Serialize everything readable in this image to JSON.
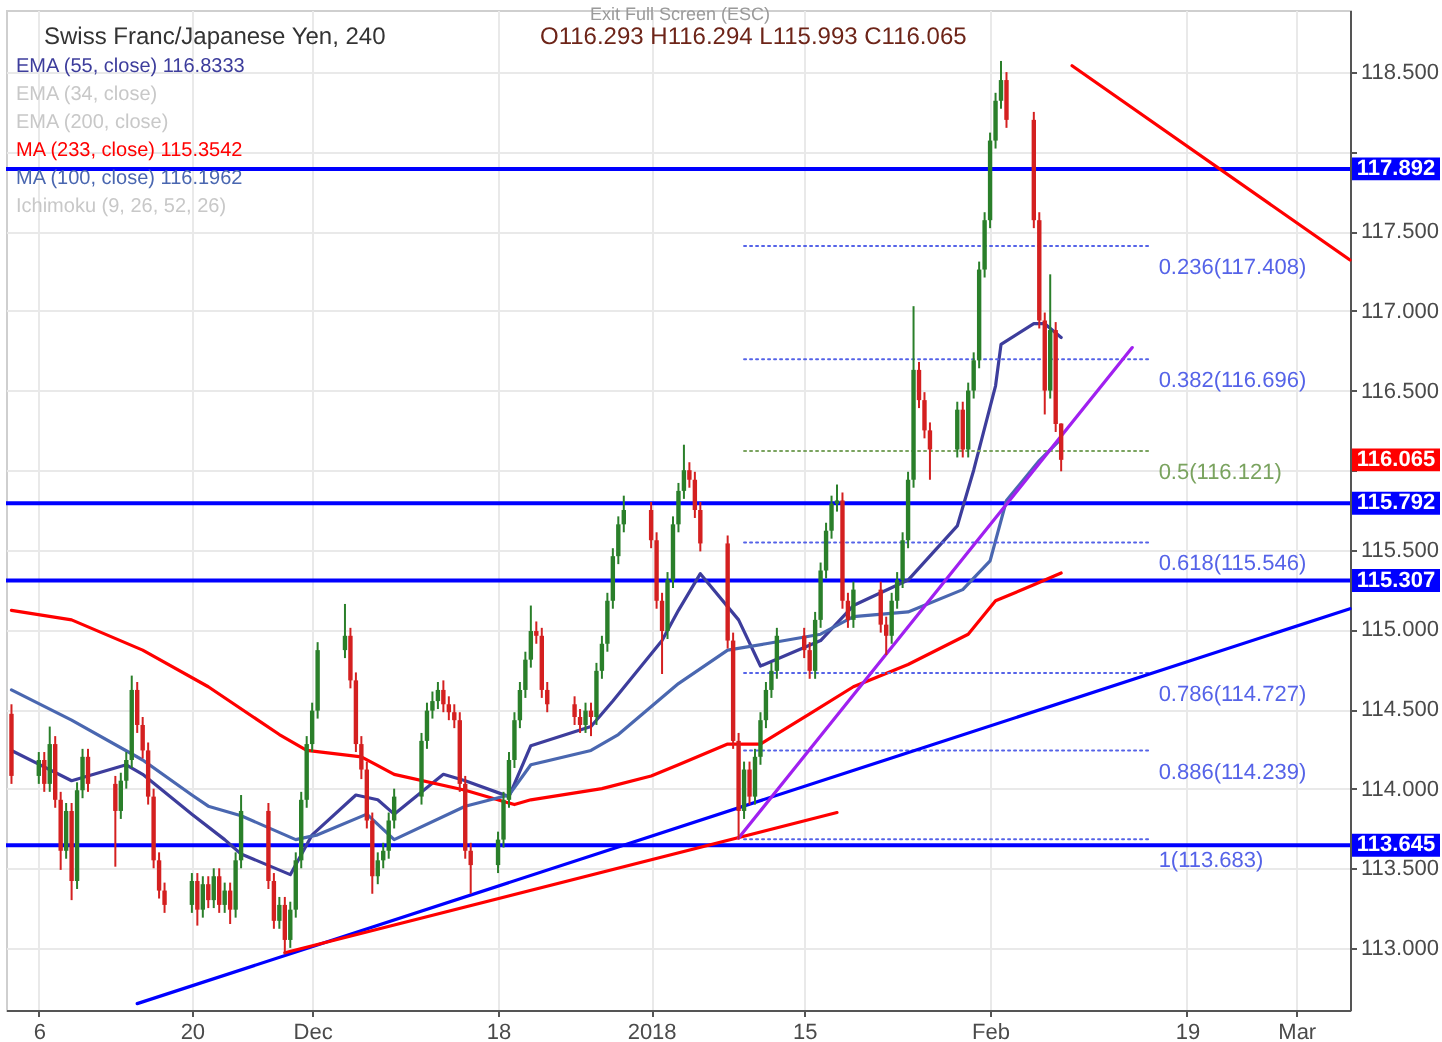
{
  "chart_data": {
    "type": "candlestick",
    "title": "Swiss Franc/Japanese Yen, 240",
    "subtitle": "O116.293 H116.294 L115.993 C116.065",
    "x": [
      "2017-11-03T12:00",
      "2017-11-06T00:00",
      "2017-11-06T12:00",
      "2017-11-07T00:00",
      "2017-11-07T12:00",
      "2017-11-08T00:00",
      "2017-11-08T12:00",
      "2017-11-09T00:00",
      "2017-11-09T12:00",
      "2017-11-10T00:00",
      "2017-11-10T12:00",
      "2017-11-13T00:00",
      "2017-11-13T12:00",
      "2017-11-14T00:00",
      "2017-11-14T12:00",
      "2017-11-15T00:00",
      "2017-11-15T12:00",
      "2017-11-16T00:00",
      "2017-11-16T12:00",
      "2017-11-17T00:00",
      "2017-11-17T12:00",
      "2017-11-20T00:00",
      "2017-11-20T12:00",
      "2017-11-21T00:00",
      "2017-11-21T12:00",
      "2017-11-22T00:00",
      "2017-11-22T12:00",
      "2017-11-23T00:00",
      "2017-11-23T12:00",
      "2017-11-24T00:00",
      "2017-11-24T12:00",
      "2017-11-27T00:00",
      "2017-11-27T12:00",
      "2017-11-28T00:00",
      "2017-11-28T12:00",
      "2017-11-29T00:00",
      "2017-11-29T12:00",
      "2017-11-30T00:00",
      "2017-11-30T12:00",
      "2017-12-01T00:00",
      "2017-12-01T12:00",
      "2017-12-04T00:00",
      "2017-12-04T12:00",
      "2017-12-05T00:00",
      "2017-12-05T12:00",
      "2017-12-06T00:00",
      "2017-12-06T12:00",
      "2017-12-07T00:00",
      "2017-12-07T12:00",
      "2017-12-08T00:00",
      "2017-12-08T12:00",
      "2017-12-11T00:00",
      "2017-12-11T12:00",
      "2017-12-12T00:00",
      "2017-12-12T12:00",
      "2017-12-13T00:00",
      "2017-12-13T12:00",
      "2017-12-14T00:00",
      "2017-12-14T12:00",
      "2017-12-15T00:00",
      "2017-12-15T12:00",
      "2017-12-18T00:00",
      "2017-12-18T12:00",
      "2017-12-19T00:00",
      "2017-12-19T12:00",
      "2017-12-20T00:00",
      "2017-12-20T12:00",
      "2017-12-21T00:00",
      "2017-12-21T12:00",
      "2017-12-22T00:00",
      "2017-12-22T12:00",
      "2017-12-25T00:00",
      "2017-12-25T12:00",
      "2017-12-26T00:00",
      "2017-12-26T12:00",
      "2017-12-27T00:00",
      "2017-12-27T12:00",
      "2017-12-28T00:00",
      "2017-12-28T12:00",
      "2017-12-29T00:00",
      "2017-12-29T12:00",
      "2018-01-01T00:00",
      "2018-01-01T12:00",
      "2018-01-02T00:00",
      "2018-01-02T12:00",
      "2018-01-03T00:00",
      "2018-01-03T12:00",
      "2018-01-04T00:00",
      "2018-01-04T12:00",
      "2018-01-05T00:00",
      "2018-01-05T12:00",
      "2018-01-08T00:00",
      "2018-01-08T12:00",
      "2018-01-09T00:00",
      "2018-01-09T12:00",
      "2018-01-10T00:00",
      "2018-01-10T12:00",
      "2018-01-11T00:00",
      "2018-01-11T12:00",
      "2018-01-12T00:00",
      "2018-01-12T12:00",
      "2018-01-15T00:00",
      "2018-01-15T12:00",
      "2018-01-16T00:00",
      "2018-01-16T12:00",
      "2018-01-17T00:00",
      "2018-01-17T12:00",
      "2018-01-18T00:00",
      "2018-01-18T12:00",
      "2018-01-19T00:00",
      "2018-01-19T12:00",
      "2018-01-22T00:00",
      "2018-01-22T12:00",
      "2018-01-23T00:00",
      "2018-01-23T12:00",
      "2018-01-24T00:00",
      "2018-01-24T12:00",
      "2018-01-25T00:00",
      "2018-01-25T12:00",
      "2018-01-26T00:00",
      "2018-01-26T12:00",
      "2018-01-29T00:00",
      "2018-01-29T12:00",
      "2018-01-30T00:00",
      "2018-01-30T12:00",
      "2018-01-31T00:00",
      "2018-01-31T12:00",
      "2018-02-01T00:00",
      "2018-02-01T12:00",
      "2018-02-02T00:00",
      "2018-02-02T12:00",
      "2018-02-05T00:00",
      "2018-02-05T12:00",
      "2018-02-06T00:00",
      "2018-02-06T12:00",
      "2018-02-07T00:00",
      "2018-02-07T12:00"
    ],
    "ohlc": [
      [
        114.47,
        114.53,
        114.03,
        114.08
      ],
      [
        114.08,
        114.23,
        114.03,
        114.18
      ],
      [
        114.18,
        114.23,
        113.98,
        114.03
      ],
      [
        114.03,
        114.39,
        113.98,
        114.28
      ],
      [
        114.28,
        114.33,
        113.88,
        113.93
      ],
      [
        113.93,
        113.98,
        113.49,
        113.61
      ],
      [
        113.61,
        113.91,
        113.56,
        113.86
      ],
      [
        113.86,
        113.91,
        113.3,
        113.42
      ],
      [
        113.42,
        114.04,
        113.37,
        113.99
      ],
      [
        113.99,
        114.25,
        113.94,
        114.2
      ],
      [
        114.2,
        114.25,
        113.98,
        114.03
      ],
      [
        114.03,
        114.08,
        113.51,
        113.86
      ],
      [
        113.86,
        114.1,
        113.81,
        114.05
      ],
      [
        114.05,
        114.23,
        114.0,
        114.18
      ],
      [
        114.18,
        114.71,
        114.13,
        114.62
      ],
      [
        114.62,
        114.67,
        114.35,
        114.4
      ],
      [
        114.4,
        114.45,
        114.19,
        114.24
      ],
      [
        114.24,
        114.29,
        113.9,
        113.95
      ],
      [
        113.95,
        114.0,
        113.5,
        113.55
      ],
      [
        113.55,
        113.6,
        113.31,
        113.36
      ],
      [
        113.36,
        113.41,
        113.22,
        113.27
      ],
      [
        113.27,
        113.47,
        113.22,
        113.42
      ],
      [
        113.42,
        113.47,
        113.14,
        113.24
      ],
      [
        113.24,
        113.45,
        113.19,
        113.4
      ],
      [
        113.4,
        113.45,
        113.25,
        113.3
      ],
      [
        113.3,
        113.5,
        113.25,
        113.45
      ],
      [
        113.45,
        113.5,
        113.22,
        113.27
      ],
      [
        113.27,
        113.41,
        113.22,
        113.36
      ],
      [
        113.36,
        113.41,
        113.15,
        113.24
      ],
      [
        113.24,
        113.6,
        113.19,
        113.55
      ],
      [
        113.55,
        113.96,
        113.5,
        113.86
      ],
      [
        113.86,
        113.91,
        113.37,
        113.42
      ],
      [
        113.42,
        113.47,
        113.12,
        113.17
      ],
      [
        113.17,
        113.32,
        113.12,
        113.27
      ],
      [
        113.27,
        113.32,
        112.96,
        113.05
      ],
      [
        113.05,
        113.29,
        113.0,
        113.24
      ],
      [
        113.24,
        113.6,
        113.19,
        113.55
      ],
      [
        113.55,
        113.98,
        113.5,
        113.93
      ],
      [
        113.93,
        114.33,
        113.88,
        114.28
      ],
      [
        114.28,
        114.54,
        114.23,
        114.49
      ],
      [
        114.49,
        114.92,
        114.44,
        114.87
      ],
      [
        114.87,
        115.16,
        114.82,
        114.96
      ],
      [
        114.96,
        115.01,
        114.63,
        114.68
      ],
      [
        114.68,
        114.73,
        114.23,
        114.28
      ],
      [
        114.28,
        114.33,
        114.06,
        114.12
      ],
      [
        114.12,
        114.17,
        113.75,
        113.8
      ],
      [
        113.8,
        113.85,
        113.34,
        113.45
      ],
      [
        113.45,
        113.6,
        113.4,
        113.55
      ],
      [
        113.55,
        113.66,
        113.5,
        113.61
      ],
      [
        113.61,
        113.85,
        113.56,
        113.8
      ],
      [
        113.8,
        114.0,
        113.75,
        113.95
      ],
      [
        113.95,
        114.35,
        113.9,
        114.3
      ],
      [
        114.3,
        114.54,
        114.25,
        114.49
      ],
      [
        114.49,
        114.61,
        114.44,
        114.55
      ],
      [
        114.55,
        114.67,
        114.5,
        114.62
      ],
      [
        114.62,
        114.68,
        114.48,
        114.53
      ],
      [
        114.53,
        114.58,
        114.43,
        114.48
      ],
      [
        114.48,
        114.53,
        114.38,
        114.43
      ],
      [
        114.43,
        114.48,
        113.98,
        114.03
      ],
      [
        114.03,
        114.08,
        113.56,
        113.61
      ],
      [
        113.61,
        113.66,
        113.34,
        113.52
      ],
      [
        113.52,
        113.73,
        113.47,
        113.68
      ],
      [
        113.68,
        113.98,
        113.63,
        113.93
      ],
      [
        113.93,
        114.23,
        113.88,
        114.18
      ],
      [
        114.18,
        114.48,
        114.13,
        114.43
      ],
      [
        114.43,
        114.67,
        114.38,
        114.62
      ],
      [
        114.62,
        114.86,
        114.57,
        114.81
      ],
      [
        114.81,
        115.15,
        114.76,
        114.99
      ],
      [
        114.99,
        115.05,
        114.91,
        114.96
      ],
      [
        114.96,
        115.01,
        114.57,
        114.62
      ],
      [
        114.62,
        114.67,
        114.48,
        114.53
      ],
      [
        114.53,
        114.58,
        114.4,
        114.45
      ],
      [
        114.45,
        114.5,
        114.35,
        114.4
      ],
      [
        114.4,
        114.54,
        114.35,
        114.49
      ],
      [
        114.49,
        114.54,
        114.33,
        114.45
      ],
      [
        114.45,
        114.79,
        114.4,
        114.74
      ],
      [
        114.74,
        114.96,
        114.69,
        114.91
      ],
      [
        114.91,
        115.23,
        114.86,
        115.18
      ],
      [
        115.18,
        115.51,
        115.13,
        115.46
      ],
      [
        115.46,
        115.71,
        115.41,
        115.66
      ],
      [
        115.66,
        115.84,
        115.61,
        115.75
      ],
      [
        115.75,
        115.8,
        115.51,
        115.56
      ],
      [
        115.56,
        115.61,
        115.13,
        115.18
      ],
      [
        115.18,
        115.23,
        114.72,
        114.99
      ],
      [
        114.99,
        115.36,
        114.94,
        115.31
      ],
      [
        115.31,
        115.71,
        115.26,
        115.66
      ],
      [
        115.66,
        115.92,
        115.61,
        115.87
      ],
      [
        115.87,
        116.16,
        115.82,
        116.0
      ],
      [
        116.0,
        116.05,
        115.89,
        115.94
      ],
      [
        115.94,
        115.99,
        115.7,
        115.75
      ],
      [
        115.75,
        115.8,
        115.49,
        115.54
      ],
      [
        115.54,
        115.59,
        114.88,
        114.93
      ],
      [
        114.93,
        114.98,
        114.25,
        114.3
      ],
      [
        114.3,
        114.35,
        113.68,
        113.86
      ],
      [
        113.86,
        114.17,
        113.81,
        114.12
      ],
      [
        114.12,
        114.17,
        113.9,
        113.95
      ],
      [
        113.95,
        114.25,
        113.9,
        114.2
      ],
      [
        114.2,
        114.48,
        114.15,
        114.43
      ],
      [
        114.43,
        114.67,
        114.38,
        114.62
      ],
      [
        114.62,
        114.79,
        114.57,
        114.74
      ],
      [
        114.74,
        115.01,
        114.69,
        114.96
      ],
      [
        114.96,
        115.01,
        114.82,
        114.87
      ],
      [
        114.87,
        114.92,
        114.69,
        114.74
      ],
      [
        114.74,
        115.11,
        114.69,
        115.06
      ],
      [
        115.06,
        115.42,
        115.01,
        115.37
      ],
      [
        115.37,
        115.67,
        115.32,
        115.62
      ],
      [
        115.62,
        115.84,
        115.57,
        115.79
      ],
      [
        115.79,
        115.91,
        115.74,
        115.81
      ],
      [
        115.81,
        115.86,
        115.13,
        115.18
      ],
      [
        115.18,
        115.23,
        115.01,
        115.06
      ],
      [
        115.06,
        115.3,
        115.01,
        115.25
      ],
      [
        115.25,
        115.3,
        114.98,
        115.03
      ],
      [
        115.03,
        115.08,
        114.84,
        114.96
      ],
      [
        114.96,
        115.23,
        114.91,
        115.18
      ],
      [
        115.18,
        115.36,
        115.13,
        115.31
      ],
      [
        115.31,
        115.61,
        115.26,
        115.56
      ],
      [
        115.56,
        115.99,
        115.51,
        115.94
      ],
      [
        115.94,
        117.03,
        115.89,
        116.63
      ],
      [
        116.63,
        116.68,
        116.39,
        116.44
      ],
      [
        116.44,
        116.49,
        116.2,
        116.25
      ],
      [
        116.25,
        116.3,
        115.94,
        116.13
      ],
      [
        116.13,
        116.43,
        116.08,
        116.38
      ],
      [
        116.38,
        116.43,
        116.08,
        116.13
      ],
      [
        116.13,
        116.55,
        116.08,
        116.5
      ],
      [
        116.5,
        116.74,
        116.45,
        116.69
      ],
      [
        116.69,
        117.31,
        116.64,
        117.26
      ],
      [
        117.26,
        117.62,
        117.21,
        117.57
      ],
      [
        117.57,
        118.12,
        117.52,
        118.07
      ],
      [
        118.07,
        118.37,
        118.02,
        118.32
      ],
      [
        118.32,
        118.57,
        118.27,
        118.45
      ],
      [
        118.45,
        118.5,
        118.15,
        118.2
      ],
      [
        118.2,
        118.25,
        117.52,
        117.57
      ],
      [
        117.57,
        117.62,
        116.89,
        116.94
      ],
      [
        116.94,
        116.99,
        116.35,
        116.5
      ],
      [
        116.5,
        117.23,
        116.45,
        116.88
      ],
      [
        116.88,
        116.93,
        116.24,
        116.29
      ],
      [
        116.293,
        116.294,
        115.993,
        116.065
      ]
    ],
    "colors": [
      "#d42020",
      "#2a7f2a",
      "#d42020",
      "#2a7f2a",
      "#d42020",
      "#d42020",
      "#2a7f2a",
      "#d42020",
      "#2a7f2a",
      "#2a7f2a",
      "#d42020",
      "#d42020",
      "#2a7f2a",
      "#2a7f2a",
      "#2a7f2a",
      "#d42020",
      "#d42020",
      "#d42020",
      "#d42020",
      "#d42020",
      "#d42020",
      "#2a7f2a",
      "#d42020",
      "#2a7f2a",
      "#d42020",
      "#2a7f2a",
      "#d42020",
      "#2a7f2a",
      "#d42020",
      "#2a7f2a",
      "#2a7f2a",
      "#d42020",
      "#d42020",
      "#2a7f2a",
      "#d42020",
      "#2a7f2a",
      "#2a7f2a",
      "#2a7f2a",
      "#2a7f2a",
      "#2a7f2a",
      "#2a7f2a",
      "#2a7f2a",
      "#d42020",
      "#d42020",
      "#d42020",
      "#d42020",
      "#d42020",
      "#2a7f2a",
      "#2a7f2a",
      "#2a7f2a",
      "#2a7f2a",
      "#2a7f2a",
      "#2a7f2a",
      "#2a7f2a",
      "#2a7f2a",
      "#d42020",
      "#d42020",
      "#d42020",
      "#d42020",
      "#d42020",
      "#d42020",
      "#2a7f2a",
      "#2a7f2a",
      "#2a7f2a",
      "#2a7f2a",
      "#2a7f2a",
      "#2a7f2a",
      "#2a7f2a",
      "#d42020",
      "#d42020",
      "#d42020",
      "#d42020",
      "#d42020",
      "#2a7f2a",
      "#d42020",
      "#2a7f2a",
      "#2a7f2a",
      "#2a7f2a",
      "#2a7f2a",
      "#2a7f2a",
      "#2a7f2a",
      "#d42020",
      "#d42020",
      "#d42020",
      "#2a7f2a",
      "#2a7f2a",
      "#2a7f2a",
      "#2a7f2a",
      "#d42020",
      "#d42020",
      "#d42020",
      "#d42020",
      "#d42020",
      "#d42020",
      "#2a7f2a",
      "#d42020",
      "#2a7f2a",
      "#2a7f2a",
      "#2a7f2a",
      "#2a7f2a",
      "#2a7f2a",
      "#d42020",
      "#d42020",
      "#2a7f2a",
      "#2a7f2a",
      "#2a7f2a",
      "#2a7f2a",
      "#2a7f2a",
      "#d42020",
      "#d42020",
      "#2a7f2a",
      "#d42020",
      "#d42020",
      "#2a7f2a",
      "#2a7f2a",
      "#2a7f2a",
      "#2a7f2a",
      "#2a7f2a",
      "#d42020",
      "#d42020",
      "#d42020",
      "#2a7f2a",
      "#d42020",
      "#2a7f2a",
      "#2a7f2a",
      "#2a7f2a",
      "#2a7f2a",
      "#2a7f2a",
      "#2a7f2a",
      "#2a7f2a",
      "#d42020",
      "#d42020",
      "#d42020",
      "#d42020",
      "#2a7f2a",
      "#d42020",
      "#d42020"
    ],
    "series": [
      {
        "type": "line",
        "name": "EMA (55, close) 116.8333",
        "color": "#3d3d9c",
        "x": [
          "2017-11-03T12:00",
          "2017-11-09T00:00",
          "2017-11-14T00:00",
          "2017-11-15T12:00",
          "2017-11-20T00:00",
          "2017-11-23T00:00",
          "2017-11-24T12:00",
          "2017-11-29T00:00",
          "2017-12-01T00:00",
          "2017-12-05T00:00",
          "2017-12-07T00:00",
          "2017-12-08T12:00",
          "2017-12-13T00:00",
          "2017-12-15T00:00",
          "2017-12-19T00:00",
          "2017-12-21T00:00",
          "2017-12-26T12:00",
          "2017-12-28T12:00",
          "2018-01-02T00:00",
          "2018-01-03T12:00",
          "2018-01-05T12:00",
          "2018-01-09T00:00",
          "2018-01-11T00:00",
          "2018-01-16T12:00",
          "2018-01-19T12:00",
          "2018-01-24T12:00",
          "2018-01-29T00:00",
          "2018-01-30T12:00",
          "2018-02-01T12:00",
          "2018-02-02T00:00",
          "2018-02-05T00:00",
          "2018-02-06T00:00",
          "2018-02-07T12:00"
        ],
        "values": [
          114.24,
          114.05,
          114.15,
          114.09,
          113.84,
          113.68,
          113.59,
          113.46,
          113.71,
          113.96,
          113.93,
          113.84,
          114.09,
          114.05,
          113.95,
          114.27,
          114.39,
          114.55,
          114.93,
          115.12,
          115.35,
          115.06,
          114.77,
          114.93,
          115.15,
          115.31,
          115.65,
          116.0,
          116.53,
          116.79,
          116.92,
          116.92,
          116.8333
        ]
      },
      {
        "type": "line",
        "name": "EMA (34, close)",
        "color": "#c8c8c8",
        "values": [
          null,
          null,
          null,
          null,
          null,
          null,
          null,
          null,
          null,
          null,
          null,
          null,
          null,
          null,
          null,
          null,
          null,
          null,
          null,
          null,
          null,
          null,
          null,
          null,
          null,
          null,
          null,
          null,
          null,
          null,
          null,
          null,
          null,
          null,
          null,
          null,
          null,
          null,
          null,
          null,
          null,
          null,
          null,
          null,
          null,
          null,
          null,
          null,
          null,
          null,
          null,
          null,
          null,
          null,
          null,
          null,
          null,
          null,
          null,
          null,
          null,
          null,
          null,
          null,
          null,
          null,
          null,
          null,
          null,
          null,
          null,
          null,
          null,
          null,
          null,
          null,
          null,
          null,
          null,
          null,
          null,
          null,
          null,
          null,
          null,
          null,
          null,
          null,
          null,
          null,
          null,
          null,
          null,
          null,
          null,
          null,
          null,
          null,
          null,
          null,
          null,
          null,
          null,
          null,
          null,
          null,
          null,
          null,
          null,
          null,
          null,
          null,
          null,
          null,
          null,
          null,
          null,
          null,
          null,
          null,
          null,
          null,
          null,
          null,
          null,
          null,
          null,
          null,
          null,
          null,
          null,
          null,
          null,
          null,
          null,
          null,
          null
        ]
      },
      {
        "type": "line",
        "name": "EMA (200, close)",
        "color": "#c8c8c8",
        "values": [
          null,
          null,
          null,
          null,
          null,
          null,
          null,
          null,
          null,
          null,
          null,
          null,
          null,
          null,
          null,
          null,
          null,
          null,
          null,
          null,
          null,
          null,
          null,
          null,
          null,
          null,
          null,
          null,
          null,
          null,
          null,
          null,
          null,
          null,
          null,
          null,
          null,
          null,
          null,
          null,
          null,
          null,
          null,
          null,
          null,
          null,
          null,
          null,
          null,
          null,
          null,
          null,
          null,
          null,
          null,
          null,
          null,
          null,
          null,
          null,
          null,
          null,
          null,
          null,
          null,
          null,
          null,
          null,
          null,
          null,
          null,
          null,
          null,
          null,
          null,
          null,
          null,
          null,
          null,
          null,
          null,
          null,
          null,
          null,
          null,
          null,
          null,
          null,
          null,
          null,
          null,
          null,
          null,
          null,
          null,
          null,
          null,
          null,
          null,
          null,
          null,
          null,
          null,
          null,
          null,
          null,
          null,
          null,
          null,
          null,
          null,
          null,
          null,
          null,
          null,
          null,
          null,
          null,
          null,
          null,
          null,
          null,
          null,
          null,
          null,
          null,
          null,
          null,
          null,
          null,
          null,
          null,
          null,
          null,
          null,
          null,
          null
        ]
      },
      {
        "type": "line",
        "name": "MA (233, close) 115.3542",
        "color": "#ff0000",
        "x": [
          "2017-11-03T12:00",
          "2017-11-09T00:00",
          "2017-11-15T12:00",
          "2017-11-21T12:00",
          "2017-11-28T00:00",
          "2017-11-30T12:00",
          "2017-12-05T12:00",
          "2017-12-08T12:00",
          "2017-12-15T00:00",
          "2017-12-19T12:00",
          "2017-12-21T00:00",
          "2017-12-27T12:00",
          "2018-01-01T00:00",
          "2018-01-03T12:00",
          "2018-01-08T00:00",
          "2018-01-11T00:00",
          "2018-01-15T12:00",
          "2018-01-19T12:00",
          "2018-01-24T12:00",
          "2018-01-30T00:00",
          "2018-02-01T12:00",
          "2018-02-05T00:00",
          "2018-02-07T12:00"
        ],
        "values": [
          115.12,
          115.06,
          114.87,
          114.64,
          114.34,
          114.24,
          114.2,
          114.09,
          113.99,
          113.9,
          113.93,
          114.0,
          114.08,
          114.15,
          114.28,
          114.28,
          114.47,
          114.64,
          114.78,
          114.97,
          115.18,
          115.28,
          115.3542
        ]
      },
      {
        "type": "line",
        "name": "MA (100, close) 116.1962",
        "color": "#4a67b0",
        "x": [
          "2017-11-03T12:00",
          "2017-11-09T00:00",
          "2017-11-15T12:00",
          "2017-11-20T00:00",
          "2017-11-21T12:00",
          "2017-11-24T12:00",
          "2017-11-29T12:00",
          "2017-12-01T12:00",
          "2017-12-06T00:00",
          "2017-12-08T12:00",
          "2017-12-15T00:00",
          "2017-12-19T00:00",
          "2017-12-21T00:00",
          "2017-12-26T12:00",
          "2017-12-29T00:00",
          "2018-01-03T12:00",
          "2018-01-08T00:00",
          "2018-01-11T12:00",
          "2018-01-16T12:00",
          "2018-01-19T12:00",
          "2018-01-24T12:00",
          "2018-01-29T12:00",
          "2018-02-01T00:00",
          "2018-02-02T12:00",
          "2018-02-05T12:00",
          "2018-02-07T12:00"
        ],
        "values": [
          114.62,
          114.43,
          114.18,
          113.96,
          113.89,
          113.83,
          113.68,
          113.71,
          113.84,
          113.68,
          113.89,
          113.96,
          114.15,
          114.24,
          114.34,
          114.66,
          114.87,
          114.91,
          114.97,
          115.08,
          115.11,
          115.25,
          115.43,
          115.81,
          116.06,
          116.1962
        ]
      },
      {
        "type": "line",
        "name": "Ichimoku (9, 26, 52, 26)",
        "color": "#c8c8c8",
        "values": [
          null,
          null,
          null,
          null,
          null,
          null,
          null,
          null,
          null,
          null,
          null,
          null,
          null,
          null,
          null,
          null,
          null,
          null,
          null,
          null,
          null,
          null,
          null,
          null,
          null,
          null,
          null,
          null,
          null,
          null,
          null,
          null,
          null,
          null,
          null,
          null,
          null,
          null,
          null,
          null,
          null,
          null,
          null,
          null,
          null,
          null,
          null,
          null,
          null,
          null,
          null,
          null,
          null,
          null,
          null,
          null,
          null,
          null,
          null,
          null,
          null,
          null,
          null,
          null,
          null,
          null,
          null,
          null,
          null,
          null,
          null,
          null,
          null,
          null,
          null,
          null,
          null,
          null,
          null,
          null,
          null,
          null,
          null,
          null,
          null,
          null,
          null,
          null,
          null,
          null,
          null,
          null,
          null,
          null,
          null,
          null,
          null,
          null,
          null,
          null,
          null,
          null,
          null,
          null,
          null,
          null,
          null,
          null,
          null,
          null,
          null,
          null,
          null,
          null,
          null,
          null,
          null,
          null,
          null,
          null,
          null,
          null,
          null,
          null,
          null,
          null,
          null,
          null,
          null,
          null,
          null,
          null,
          null,
          null,
          null,
          null,
          null
        ]
      },
      {
        "type": "line",
        "color": "#5563e8",
        "line_style": "dotted",
        "x": [
          "2018-01-09T12:00",
          "2018-02-15T12:00"
        ],
        "values": [
          117.408,
          117.408
        ],
        "value_labels": [
          null,
          "0.236(117.408)"
        ]
      },
      {
        "type": "line",
        "color": "#5563e8",
        "line_style": "dotted",
        "x": [
          "2018-01-09T12:00",
          "2018-02-15T12:00"
        ],
        "values": [
          116.696,
          116.696
        ],
        "value_labels": [
          null,
          "0.382(116.696)"
        ]
      },
      {
        "type": "line",
        "color": "#7aa35f",
        "line_style": "dotted",
        "x": [
          "2018-01-09T12:00",
          "2018-02-15T12:00"
        ],
        "values": [
          116.121,
          116.121
        ],
        "value_labels": [
          null,
          "0.5(116.121)"
        ]
      },
      {
        "type": "line",
        "color": "#5563e8",
        "line_style": "dotted",
        "x": [
          "2018-01-09T12:00",
          "2018-02-15T12:00"
        ],
        "values": [
          115.546,
          115.546
        ],
        "value_labels": [
          null,
          "0.618(115.546)"
        ]
      },
      {
        "type": "line",
        "color": "#5563e8",
        "line_style": "dotted",
        "x": [
          "2018-01-09T12:00",
          "2018-02-15T12:00"
        ],
        "values": [
          114.727,
          114.727
        ],
        "value_labels": [
          null,
          "0.786(114.727)"
        ]
      },
      {
        "type": "line",
        "color": "#5563e8",
        "line_style": "dotted",
        "x": [
          "2018-01-09T12:00",
          "2018-02-15T12:00"
        ],
        "values": [
          114.239,
          114.239
        ],
        "value_labels": [
          null,
          "0.886(114.239)"
        ]
      },
      {
        "type": "line",
        "color": "#5563e8",
        "line_style": "dotted",
        "x": [
          "2018-01-09T12:00",
          "2018-02-15T12:00"
        ],
        "values": [
          113.683,
          113.683
        ],
        "value_labels": [
          null,
          "1(113.683)"
        ]
      },
      {
        "type": "line",
        "color": "#0000ff",
        "x": [
          "2017-11-15T00:00",
          "2018-03-05T22:00"
        ],
        "values": [
          112.65,
          115.13
        ]
      },
      {
        "type": "line",
        "color": "#ff0000",
        "x": [
          "2017-11-28T12:00",
          "2018-01-18T00:00"
        ],
        "values": [
          112.97,
          113.85
        ]
      },
      {
        "type": "line",
        "color": "#a020f0",
        "x": [
          "2018-01-09T00:00",
          "2018-02-14T00:00"
        ],
        "values": [
          113.69,
          116.77
        ]
      },
      {
        "type": "line",
        "color": "#ff0000",
        "x": [
          "2018-02-08T12:00",
          "2018-03-05T22:00"
        ],
        "values": [
          118.54,
          117.32
        ]
      }
    ],
    "xlim": [
      "2017-11-03T00:00",
      "2018-03-05T22:00"
    ],
    "ylim": [
      112.61,
      118.89
    ],
    "xticks": [
      {
        "value": "2017-11-06",
        "label": "6"
      },
      {
        "value": "2017-11-20",
        "label": "20"
      },
      {
        "value": "2017-12-01",
        "label": "Dec"
      },
      {
        "value": "2017-12-18",
        "label": "18"
      },
      {
        "value": "2018-01-01",
        "label": "2018"
      },
      {
        "value": "2018-01-15",
        "label": "15"
      },
      {
        "value": "2018-02-01",
        "label": "Feb"
      },
      {
        "value": "2018-02-19",
        "label": "19"
      },
      {
        "value": "2018-03-01",
        "label": "Mar"
      }
    ],
    "yticks": [
      {
        "value": 113,
        "label": "113.000"
      },
      {
        "value": 113.5,
        "label": "113.500"
      },
      {
        "value": 114,
        "label": "114.000"
      },
      {
        "value": 114.5,
        "label": "114.500"
      },
      {
        "value": 115,
        "label": "115.000"
      },
      {
        "value": 115.5,
        "label": "115.500"
      },
      {
        "value": 116,
        "label": null
      },
      {
        "value": 116.5,
        "label": "116.500"
      },
      {
        "value": 117,
        "label": "117.000"
      },
      {
        "value": 117.5,
        "label": "117.500"
      },
      {
        "value": 118,
        "label": null
      },
      {
        "value": 118.5,
        "label": "118.500"
      }
    ],
    "grid": true,
    "legend": "top left",
    "ref_lines": [
      {
        "axis": "y",
        "value": 117.892,
        "label": "117.892",
        "color": "#0000ff"
      },
      {
        "axis": "y",
        "value": 115.792,
        "label": "115.792",
        "color": "#0000ff"
      },
      {
        "axis": "y",
        "value": 115.307,
        "label": "115.307",
        "color": "#0000ff"
      },
      {
        "axis": "y",
        "value": 113.645,
        "label": "113.645",
        "color": "#0000ff"
      }
    ],
    "annotations": [
      "Exit Full Screen (ESC)",
      "116.065"
    ]
  }
}
